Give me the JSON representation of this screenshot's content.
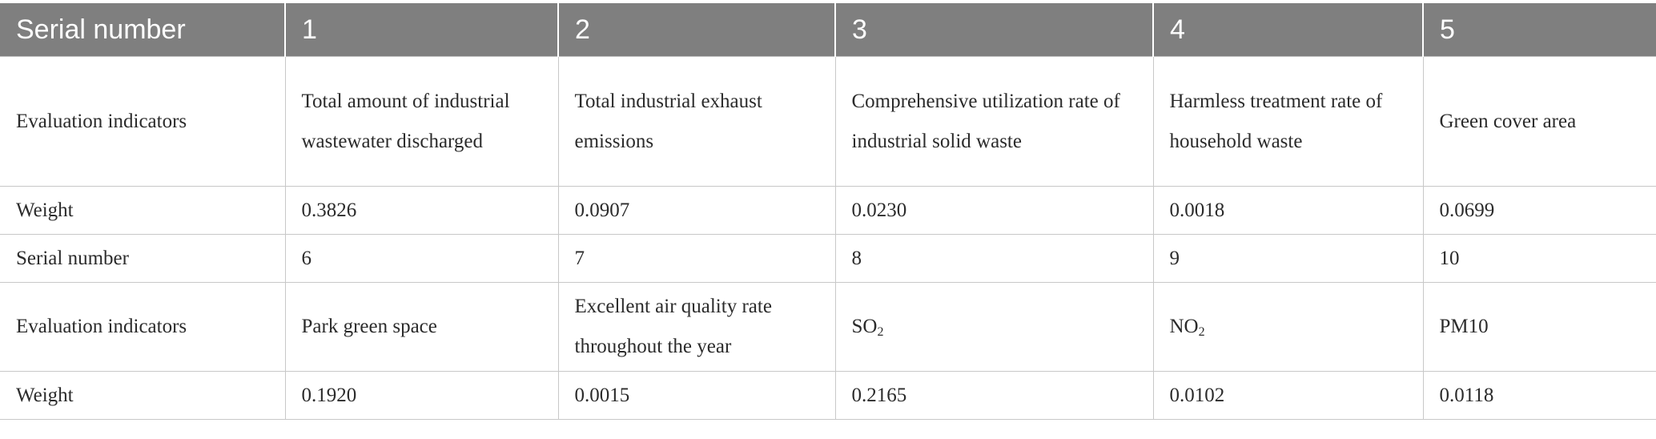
{
  "table": {
    "header": [
      "Serial number",
      "1",
      "2",
      "3",
      "4",
      "5"
    ],
    "rows": [
      [
        "Evaluation indicators",
        "Total amount of industrial wastewater discharged",
        "Total industrial exhaust emissions",
        "Comprehensive utilization rate of industrial solid waste",
        "Harmless treatment rate of household waste",
        "Green cover area"
      ],
      [
        "Weight",
        "0.3826",
        "0.0907",
        "0.0230",
        "0.0018",
        "0.0699"
      ],
      [
        "Serial number",
        "6",
        "7",
        "8",
        "9",
        "10"
      ],
      [
        "Evaluation indicators",
        "Park green space",
        "Excellent air quality rate throughout the year",
        "SO",
        "NO",
        "PM10"
      ],
      [
        "Weight",
        "0.1920",
        "0.0015",
        "0.2165",
        "0.0102",
        "0.0118"
      ]
    ],
    "subscripts": {
      "so2": "2",
      "no2": "2"
    }
  }
}
